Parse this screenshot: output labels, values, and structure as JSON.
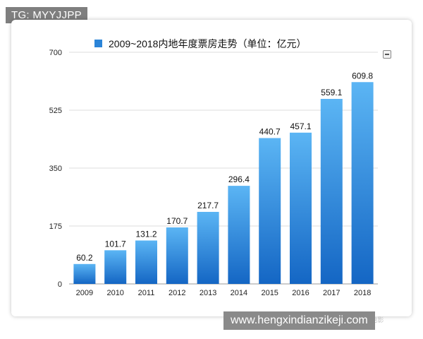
{
  "overlay": {
    "corner_text": "TG: MYYJJPP",
    "url_text": "www.hengxindianzikeji.com",
    "watermark_text": "◎ 中国电影"
  },
  "colors": {
    "bar_top": "#5bb5f4",
    "bar_bottom": "#1466c4",
    "legend_swatch": "#2b84d8"
  },
  "menu_icon": "minus-square-icon",
  "chart_data": {
    "type": "bar",
    "legend": "2009~2018内地年度票房走势（单位：亿元）",
    "legend_position": "top",
    "categories": [
      "2009",
      "2010",
      "2011",
      "2012",
      "2013",
      "2014",
      "2015",
      "2016",
      "2017",
      "2018"
    ],
    "series": [
      {
        "name": "2009~2018内地年度票房走势（单位：亿元）",
        "values": [
          60.2,
          101.7,
          131.2,
          170.7,
          217.7,
          296.4,
          440.7,
          457.1,
          559.1,
          609.8
        ]
      }
    ],
    "ylim": [
      0,
      700
    ],
    "yticks": [
      0,
      175,
      350,
      525,
      700
    ],
    "grid": true
  }
}
